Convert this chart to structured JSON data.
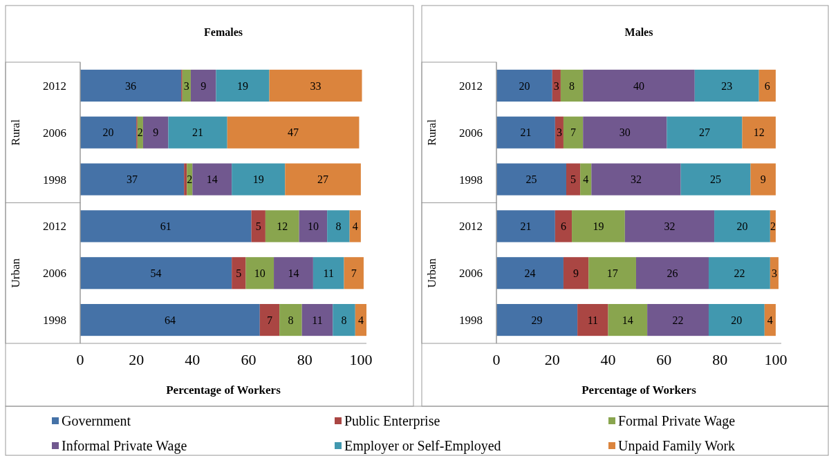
{
  "chart_data": [
    {
      "type": "bar",
      "orientation": "horizontal",
      "stacked": true,
      "title": "Females",
      "xlabel": "Percentage of Workers",
      "categories": [
        "2012",
        "2006",
        "1998",
        "2012",
        "2006",
        "1998"
      ],
      "annotations": [
        "Rural",
        "Urban"
      ],
      "xlim": [
        0,
        102
      ],
      "xticks": [
        0,
        20,
        40,
        60,
        80,
        100
      ],
      "legend": "bottom",
      "series": [
        {
          "name": "Government",
          "color": "#4572a7",
          "values": [
            36,
            20,
            37,
            61,
            54,
            64
          ],
          "value_labels": [
            "36",
            "20",
            "37",
            "61",
            "54",
            "64"
          ]
        },
        {
          "name": "Public Enterprise",
          "color": "#aa4643",
          "values": [
            0.4,
            0.4,
            1,
            5,
            5,
            7
          ],
          "value_labels": [
            null,
            null,
            null,
            "5",
            "5",
            "7"
          ]
        },
        {
          "name": "Formal Private Wage",
          "color": "#89a54e",
          "values": [
            3,
            2,
            2,
            12,
            10,
            8
          ],
          "value_labels": [
            "3",
            "2",
            "2",
            "12",
            "10",
            "8"
          ]
        },
        {
          "name": "Informal Private Wage",
          "color": "#71588f",
          "values": [
            9,
            9,
            14,
            10,
            14,
            11
          ],
          "value_labels": [
            "9",
            "9",
            "14",
            "10",
            "14",
            "11"
          ]
        },
        {
          "name": "Employer or Self-Employed",
          "color": "#4198af",
          "values": [
            19,
            21,
            19,
            8,
            11,
            8
          ],
          "value_labels": [
            "19",
            "21",
            "19",
            "8",
            "11",
            "8"
          ]
        },
        {
          "name": "Unpaid Family Work",
          "color": "#db843d",
          "values": [
            33,
            47,
            27,
            4,
            7,
            4
          ],
          "value_labels": [
            "33",
            "47",
            "27",
            "4",
            "7",
            "4"
          ]
        }
      ]
    },
    {
      "type": "bar",
      "orientation": "horizontal",
      "stacked": true,
      "title": "Males",
      "xlabel": "Percentage of Workers",
      "categories": [
        "2012",
        "2006",
        "1998",
        "2012",
        "2006",
        "1998"
      ],
      "annotations": [
        "Rural",
        "Urban"
      ],
      "xlim": [
        0,
        102
      ],
      "xticks": [
        0,
        20,
        40,
        60,
        80,
        100
      ],
      "series": [
        {
          "color": "#4572a7",
          "values": [
            20,
            21,
            25,
            21,
            24,
            29
          ],
          "value_labels": [
            "20",
            "21",
            "25",
            "21",
            "24",
            "29"
          ]
        },
        {
          "color": "#aa4643",
          "values": [
            3,
            3,
            5,
            6,
            9,
            11
          ],
          "value_labels": [
            "3",
            "3",
            "5",
            "6",
            "9",
            "11"
          ]
        },
        {
          "color": "#89a54e",
          "values": [
            8,
            7,
            4,
            19,
            17,
            14
          ],
          "value_labels": [
            "8",
            "7",
            "4",
            "19",
            "17",
            "14"
          ]
        },
        {
          "color": "#71588f",
          "values": [
            40,
            30,
            32,
            32,
            26,
            22
          ],
          "value_labels": [
            "40",
            "30",
            "32",
            "32",
            "26",
            "22"
          ]
        },
        {
          "color": "#4198af",
          "values": [
            23,
            27,
            25,
            20,
            22,
            20
          ],
          "value_labels": [
            "23",
            "27",
            "25",
            "20",
            "22",
            "20"
          ]
        },
        {
          "color": "#db843d",
          "values": [
            6,
            12,
            9,
            2,
            3,
            4
          ],
          "value_labels": [
            "6",
            "12",
            "9",
            "2",
            "3",
            "4"
          ]
        }
      ]
    }
  ]
}
